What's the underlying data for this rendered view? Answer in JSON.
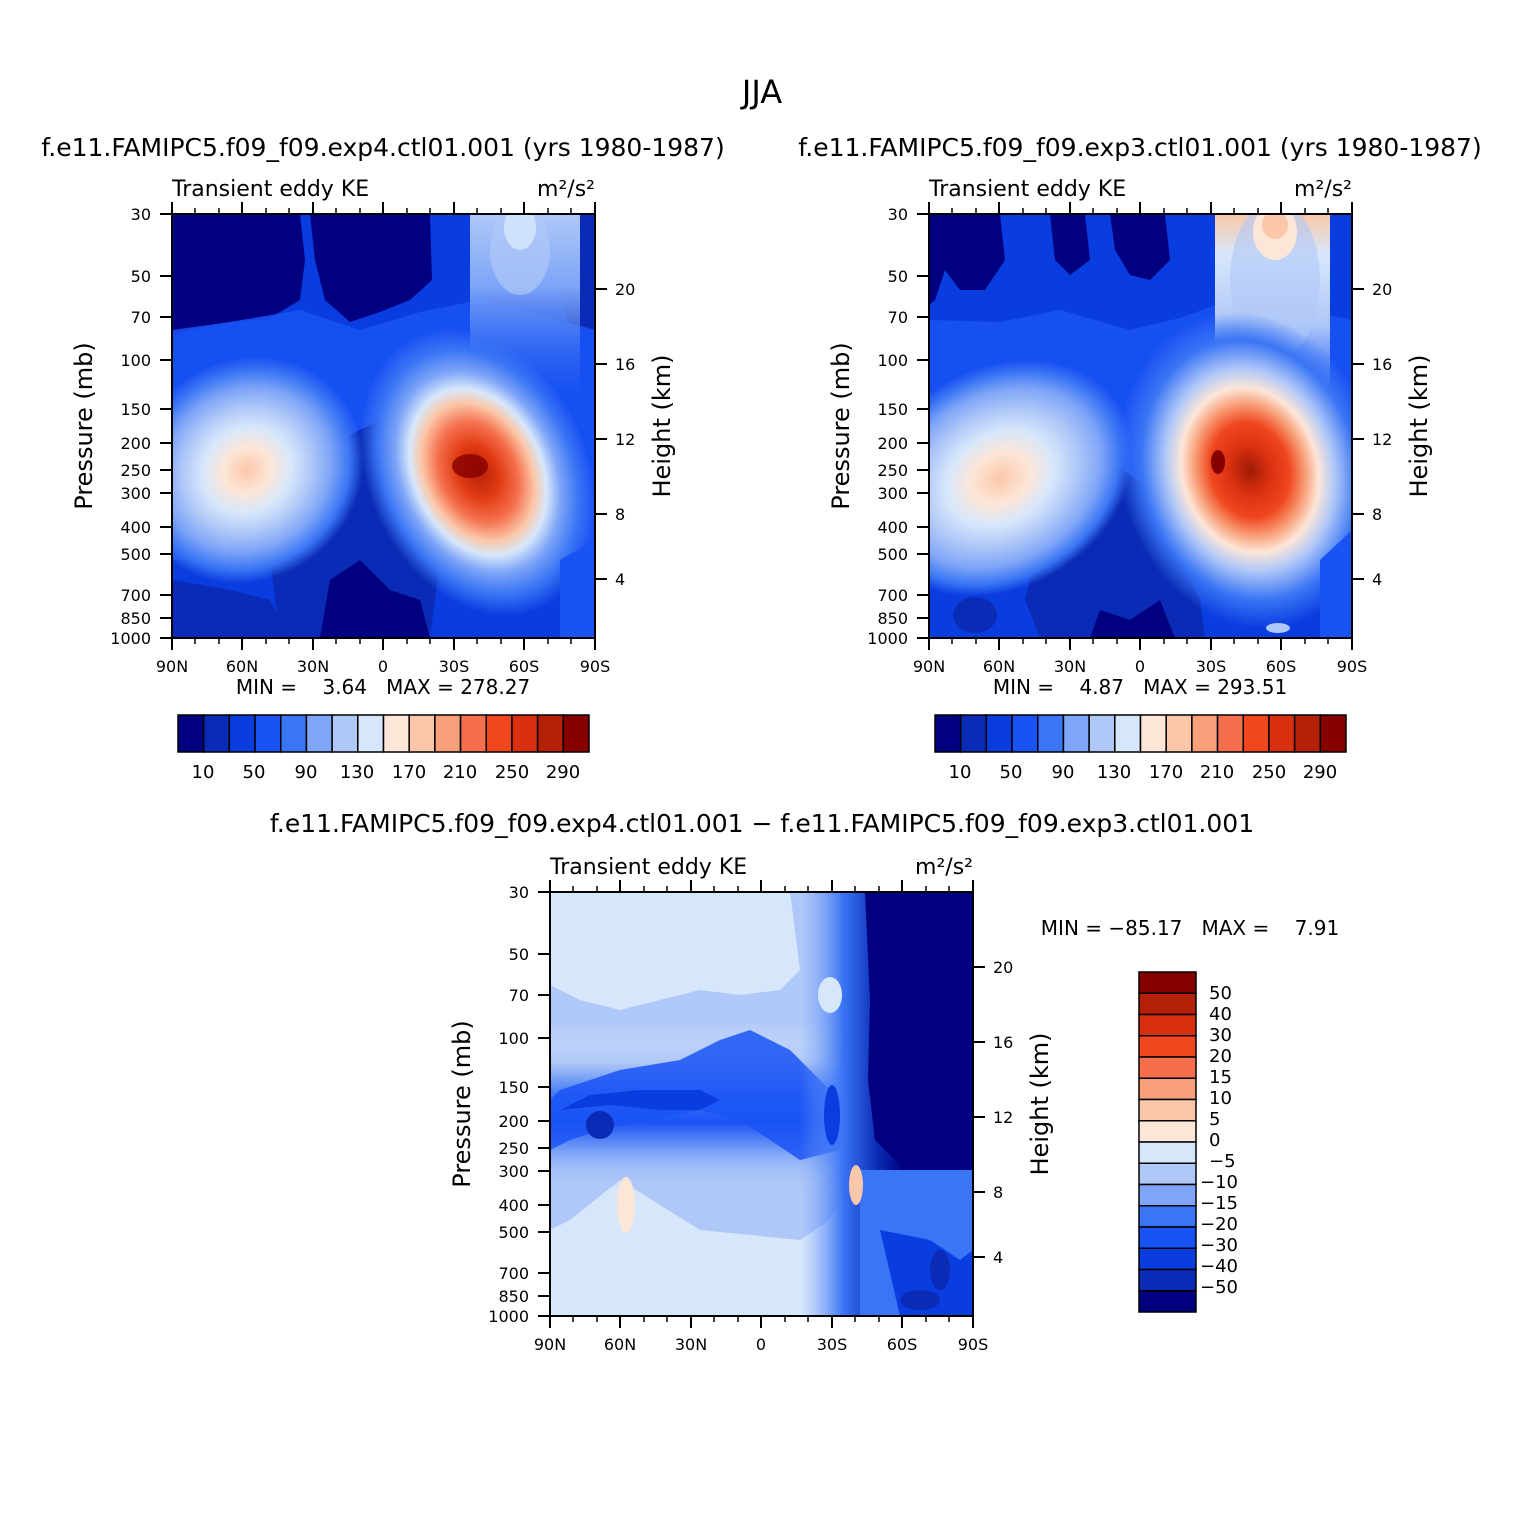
{
  "page_title": "JJA",
  "colors": {
    "abs_palette": [
      "#000080",
      "#0a2bb5",
      "#0a3de0",
      "#1a53f5",
      "#3a75f5",
      "#7ea5f7",
      "#b0c8f8",
      "#d7e7fb",
      "#fde6d8",
      "#fbc7a8",
      "#f8a079",
      "#f56f4d",
      "#f0471f",
      "#d93010",
      "#b52008",
      "#860000"
    ],
    "diff_palette": [
      "#000080",
      "#0a2bb5",
      "#0a3de0",
      "#1a53f5",
      "#3a75f5",
      "#7ea5f7",
      "#b0c8f8",
      "#d7e7fb",
      "#fde6d8",
      "#fbc7a8",
      "#f8a079",
      "#f56f4d",
      "#f0471f",
      "#d93010",
      "#b52008",
      "#860000"
    ]
  },
  "chart_data": [
    {
      "type": "heatmap",
      "id": "panel_exp4",
      "case_title": "f.e11.FAMIPC5.f09_f09.exp4.ctl01.001 (yrs 1980-1987)",
      "left_title": "Transient eddy KE",
      "right_title": "m²/s²",
      "xlabel": "",
      "ylabel": "Pressure (mb)",
      "y2label": "Height (km)",
      "x_ticks": [
        "90N",
        "60N",
        "30N",
        "0",
        "30S",
        "60S",
        "90S"
      ],
      "y_ticks": [
        "30",
        "50",
        "70",
        "100",
        "150",
        "200",
        "250",
        "300",
        "400",
        "500",
        "700",
        "850",
        "1000"
      ],
      "y2_ticks": [
        "20",
        "16",
        "12",
        "8",
        "4"
      ],
      "stats_text": "MIN =    3.64   MAX = 278.27",
      "min": 3.64,
      "max": 278.27,
      "colorbar_labels": [
        "10",
        "50",
        "90",
        "130",
        "170",
        "210",
        "250",
        "290"
      ],
      "features": [
        {
          "desc": "jet maximum",
          "lat": -40,
          "pressure_mb": 260,
          "value": 278.27
        },
        {
          "desc": "northern jet",
          "lat": 55,
          "pressure_mb": 260,
          "value": 170
        }
      ]
    },
    {
      "type": "heatmap",
      "id": "panel_exp3",
      "case_title": "f.e11.FAMIPC5.f09_f09.exp3.ctl01.001 (yrs 1980-1987)",
      "left_title": "Transient eddy KE",
      "right_title": "m²/s²",
      "xlabel": "",
      "ylabel": "Pressure (mb)",
      "y2label": "Height (km)",
      "x_ticks": [
        "90N",
        "60N",
        "30N",
        "0",
        "30S",
        "60S",
        "90S"
      ],
      "y_ticks": [
        "30",
        "50",
        "70",
        "100",
        "150",
        "200",
        "250",
        "300",
        "400",
        "500",
        "700",
        "850",
        "1000"
      ],
      "y2_ticks": [
        "20",
        "16",
        "12",
        "8",
        "4"
      ],
      "stats_text": "MIN =    4.87   MAX = 293.51",
      "min": 4.87,
      "max": 293.51,
      "colorbar_labels": [
        "10",
        "50",
        "90",
        "130",
        "170",
        "210",
        "250",
        "290"
      ],
      "features": [
        {
          "desc": "jet maximum",
          "lat": -42,
          "pressure_mb": 260,
          "value": 293.51
        },
        {
          "desc": "northern jet",
          "lat": 62,
          "pressure_mb": 280,
          "value": 170
        }
      ]
    },
    {
      "type": "heatmap",
      "id": "panel_diff",
      "case_title": "f.e11.FAMIPC5.f09_f09.exp4.ctl01.001 − f.e11.FAMIPC5.f09_f09.exp3.ctl01.001",
      "left_title": "Transient eddy KE",
      "right_title": "m²/s²",
      "xlabel": "",
      "ylabel": "Pressure (mb)",
      "y2label": "Height (km)",
      "x_ticks": [
        "90N",
        "60N",
        "30N",
        "0",
        "30S",
        "60S",
        "90S"
      ],
      "y_ticks": [
        "30",
        "50",
        "70",
        "100",
        "150",
        "200",
        "250",
        "300",
        "400",
        "500",
        "700",
        "850",
        "1000"
      ],
      "y2_ticks": [
        "20",
        "16",
        "12",
        "8",
        "4"
      ],
      "stats_text": "MIN = −85.17   MAX =    7.91",
      "min": -85.17,
      "max": 7.91,
      "colorbar_labels": [
        "50",
        "40",
        "30",
        "20",
        "15",
        "10",
        "5",
        "0",
        "−5",
        "−10",
        "−15",
        "−20",
        "−30",
        "−40",
        "−50"
      ],
      "features": [
        {
          "desc": "strong negative",
          "lat": -70,
          "pressure_mb": 80,
          "value": -85.17
        },
        {
          "desc": "small positive",
          "lat": 60,
          "pressure_mb": 400,
          "value": 7.91
        }
      ]
    }
  ]
}
